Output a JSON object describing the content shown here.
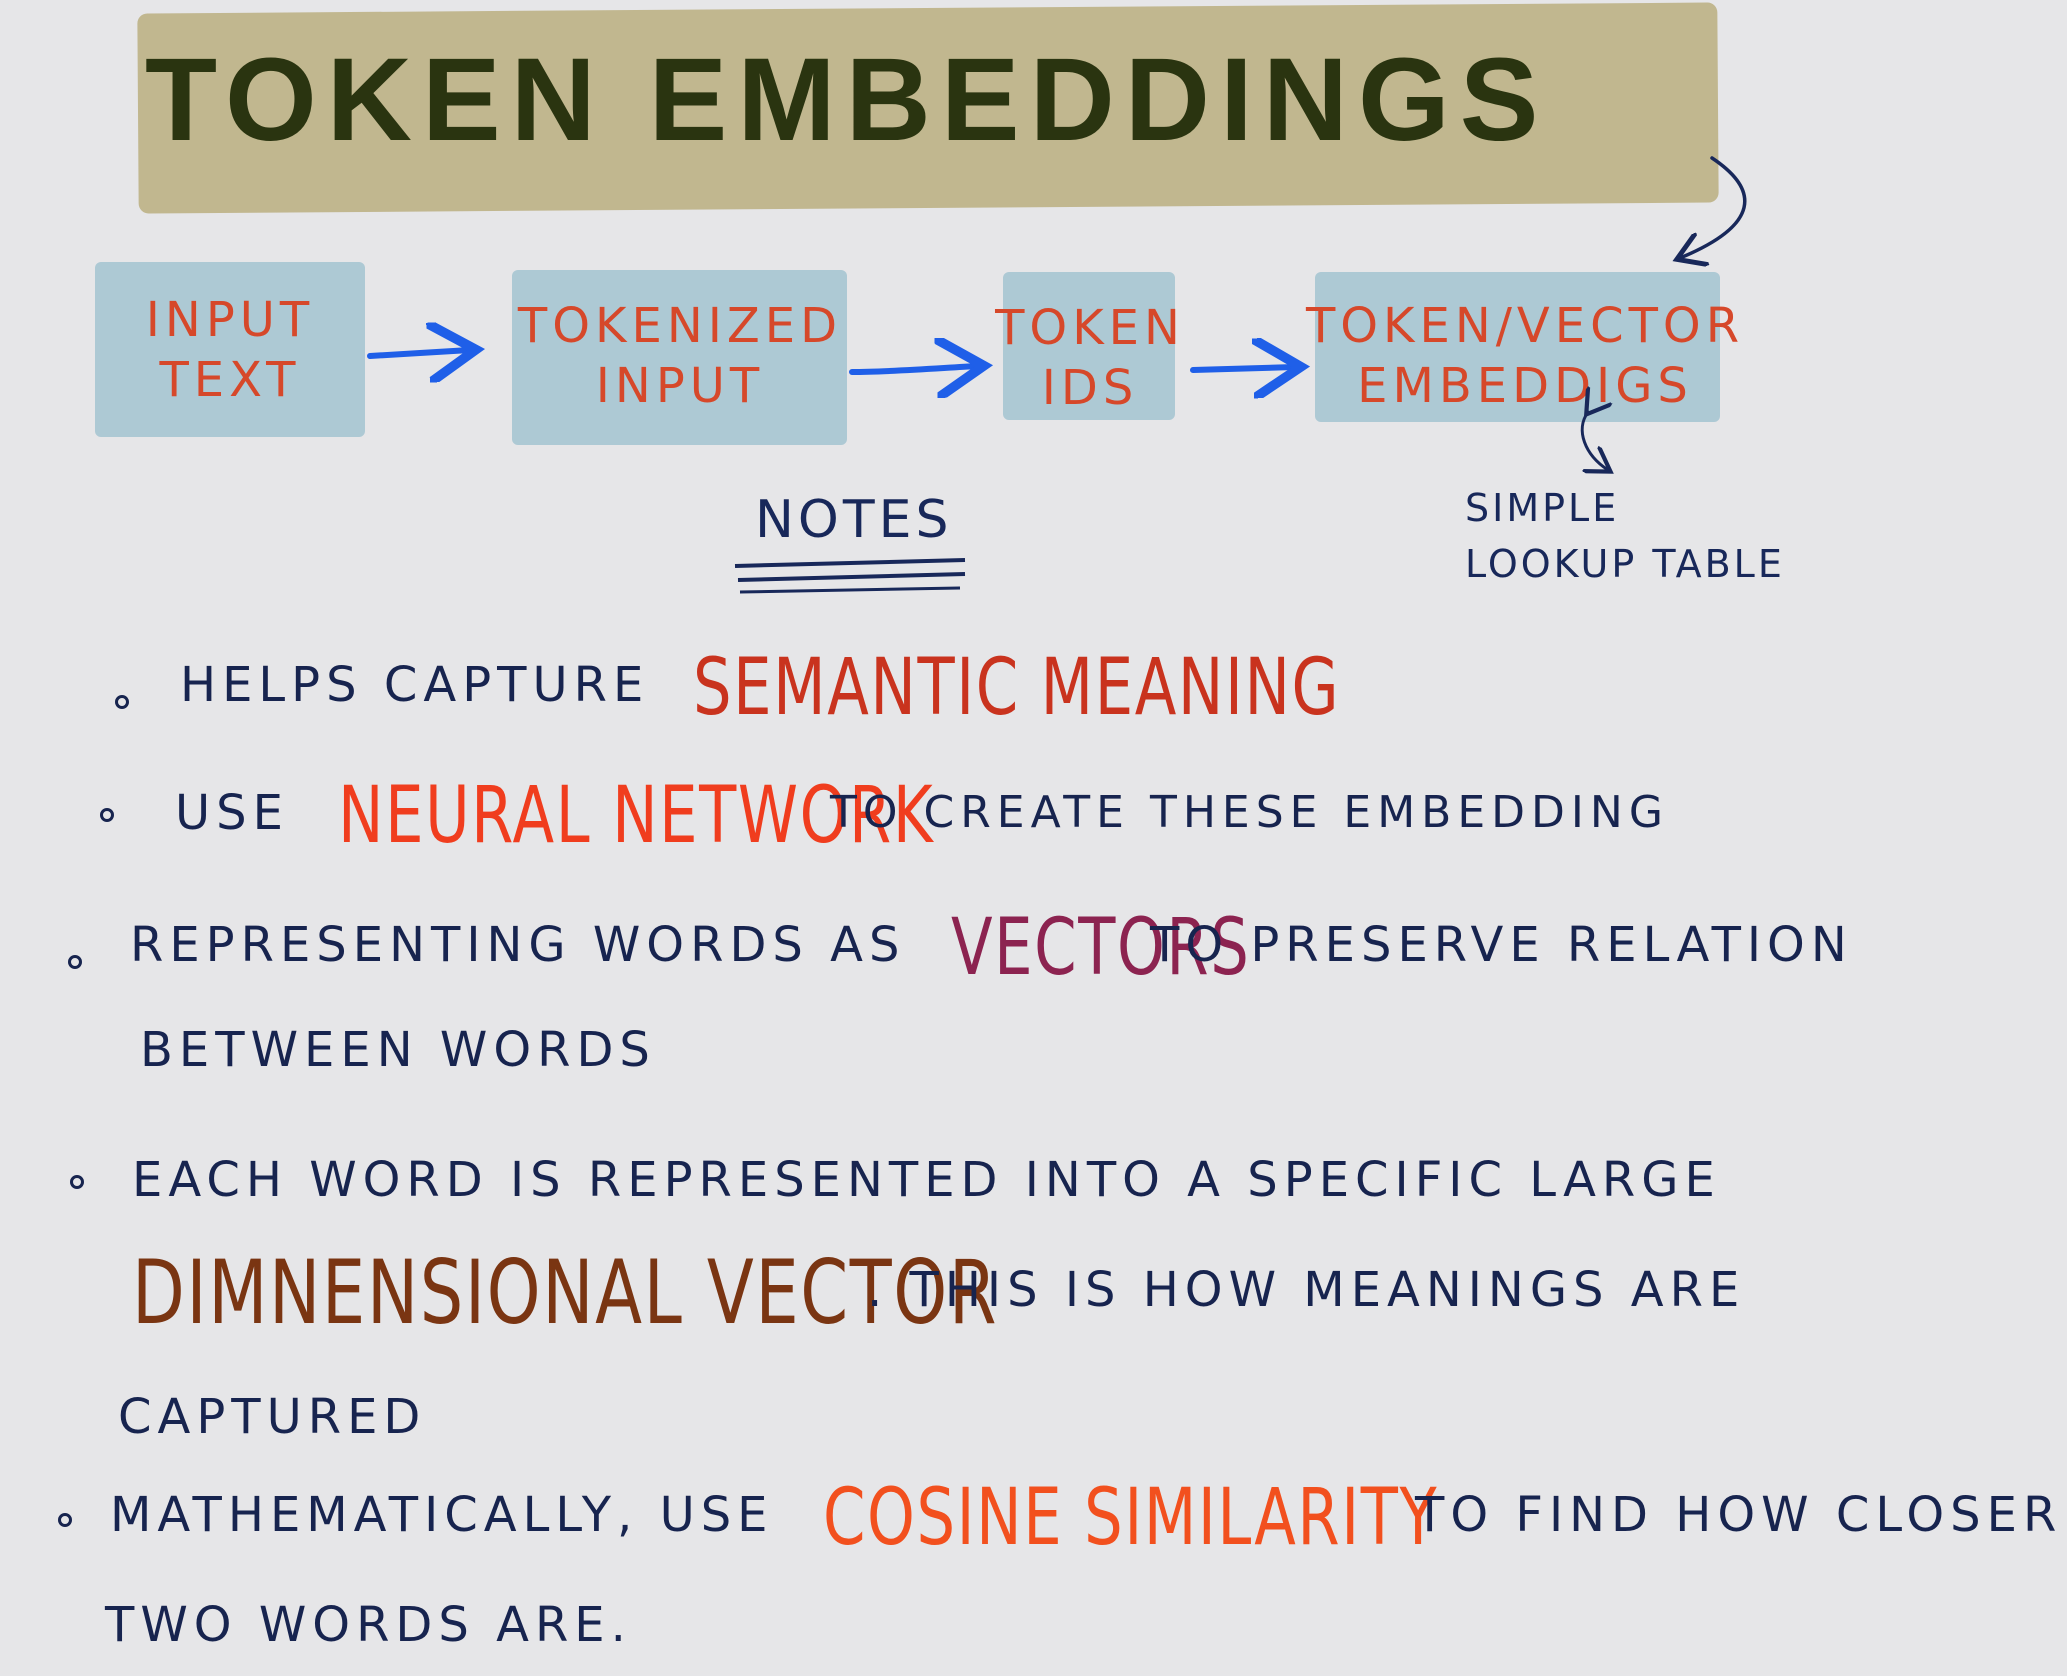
{
  "title": "TOKEN EMBEDDINGS",
  "flow": {
    "boxes": [
      {
        "line1": "INPUT",
        "line2": "TEXT"
      },
      {
        "line1": "TOKENIZED",
        "line2": "INPUT"
      },
      {
        "line1": "TOKEN",
        "line2": "IDS"
      },
      {
        "line1": "TOKEN/VECTOR",
        "line2": "EMBEDDIGS"
      }
    ],
    "lookup_line1": "SIMPLE",
    "lookup_line2": "LOOKUP TABLE"
  },
  "notes": {
    "heading": "NOTES",
    "items": [
      {
        "pre": "HELPS CAPTURE",
        "em": "SEMANTIC MEANING",
        "post": ""
      },
      {
        "pre": "USE",
        "em": "NEURAL NETWORK",
        "post": "TO CREATE THESE EMBEDDING"
      },
      {
        "pre": "REPRESENTING WORDS AS",
        "em": "VECTORS",
        "post": "TO PRESERVE RELATION",
        "cont": "BETWEEN WORDS"
      },
      {
        "pre": "EACH WORD IS REPRESENTED INTO A SPECIFIC LARGE",
        "em": "DIMNENSIONAL VECTOR",
        "post": ". THIS IS HOW MEANINGS ARE",
        "cont": "CAPTURED"
      },
      {
        "pre": "MATHEMATICALLY, USE",
        "em": "COSINE SIMILARITY",
        "post": "TO FIND HOW CLOSER",
        "cont": "TWO WORDS ARE."
      }
    ]
  },
  "colors": {
    "title": "#2a3410",
    "title_highlight": "#bfb48a",
    "box_fill": "#adc9d4",
    "box_text": "#d6482a",
    "arrow": "#1f5fe8",
    "ink": "#17244f",
    "em_semantic": "#c9331e",
    "em_neural": "#f03d1e",
    "em_vectors": "#8c2350",
    "em_dimensional": "#7a3512",
    "em_cosine": "#f2501e"
  }
}
